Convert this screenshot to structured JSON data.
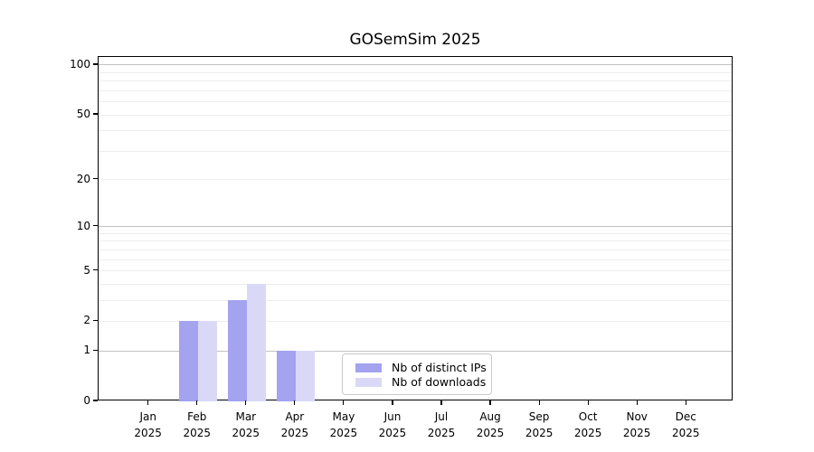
{
  "chart_data": {
    "type": "bar",
    "title": "GOSemSim 2025",
    "categories": [
      "Jan 2025",
      "Feb 2025",
      "Mar 2025",
      "Apr 2025",
      "May 2025",
      "Jun 2025",
      "Jul 2025",
      "Aug 2025",
      "Sep 2025",
      "Oct 2025",
      "Nov 2025",
      "Dec 2025"
    ],
    "series": [
      {
        "name": "Nb of distinct IPs",
        "color": "#a3a3f0",
        "values": [
          0,
          2,
          3,
          1,
          0,
          0,
          0,
          0,
          0,
          0,
          0,
          0
        ]
      },
      {
        "name": "Nb of downloads",
        "color": "#d9d9f7",
        "values": [
          0,
          2,
          4,
          1,
          0,
          0,
          0,
          0,
          0,
          0,
          0,
          0
        ]
      }
    ],
    "y_axis": {
      "tick_values": [
        0,
        1,
        2,
        5,
        10,
        20,
        50,
        100
      ],
      "tick_labels": [
        "0",
        "1",
        "2",
        "5",
        "10",
        "20",
        "50",
        "100"
      ],
      "scale": "log10(value+1)",
      "range": [
        0,
        101
      ]
    },
    "grid": {
      "enabled": true,
      "major_values": [
        1,
        10,
        100
      ],
      "minor_values": [
        2,
        3,
        4,
        5,
        6,
        7,
        8,
        9,
        20,
        30,
        40,
        50,
        60,
        70,
        80,
        90
      ],
      "major_color": "#c2c2c2",
      "minor_color": "#ededed"
    },
    "legend": {
      "position": "lower center",
      "border_color": "#c9c9c9"
    },
    "colors": {
      "axis": "#000000",
      "background": "#ffffff"
    }
  }
}
